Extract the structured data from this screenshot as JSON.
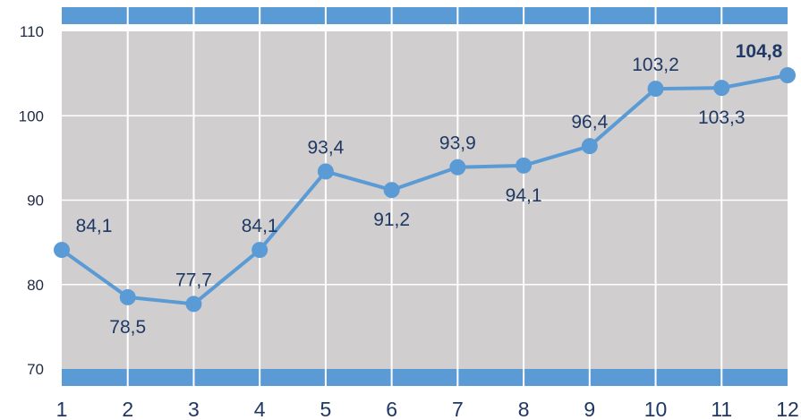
{
  "chart_data": {
    "type": "line",
    "title": "",
    "xlabel": "",
    "ylabel": "",
    "categories": [
      "1",
      "2",
      "3",
      "4",
      "5",
      "6",
      "7",
      "8",
      "9",
      "10",
      "11",
      "12"
    ],
    "series": [
      {
        "values": [
          84.1,
          78.5,
          77.7,
          84.1,
          93.4,
          91.2,
          93.9,
          94.1,
          96.4,
          103.2,
          103.3,
          104.8
        ],
        "labels": [
          "84,1",
          "78,5",
          "77,7",
          "84,1",
          "93,4",
          "91,2",
          "93,9",
          "94,1",
          "96,4",
          "103,2",
          "103,3",
          "104,8"
        ],
        "label_positions": [
          "above",
          "below",
          "above",
          "above",
          "above",
          "below",
          "above",
          "below",
          "above",
          "above",
          "below",
          "above"
        ],
        "highlighted_label_index": 11
      }
    ],
    "ylim": [
      70,
      110
    ],
    "y_ticks": [
      70,
      80,
      90,
      100,
      110
    ],
    "y_tick_labels": [
      "70",
      "80",
      "90",
      "100",
      "110"
    ],
    "grid": true,
    "legend": "none",
    "colors": {
      "line": "#5b9bd5",
      "marker": "#5b9bd5",
      "plot_background": "#d0cece",
      "band": "#5b9bd5",
      "gridline": "#ffffff",
      "label_text": "#1f3864"
    }
  }
}
